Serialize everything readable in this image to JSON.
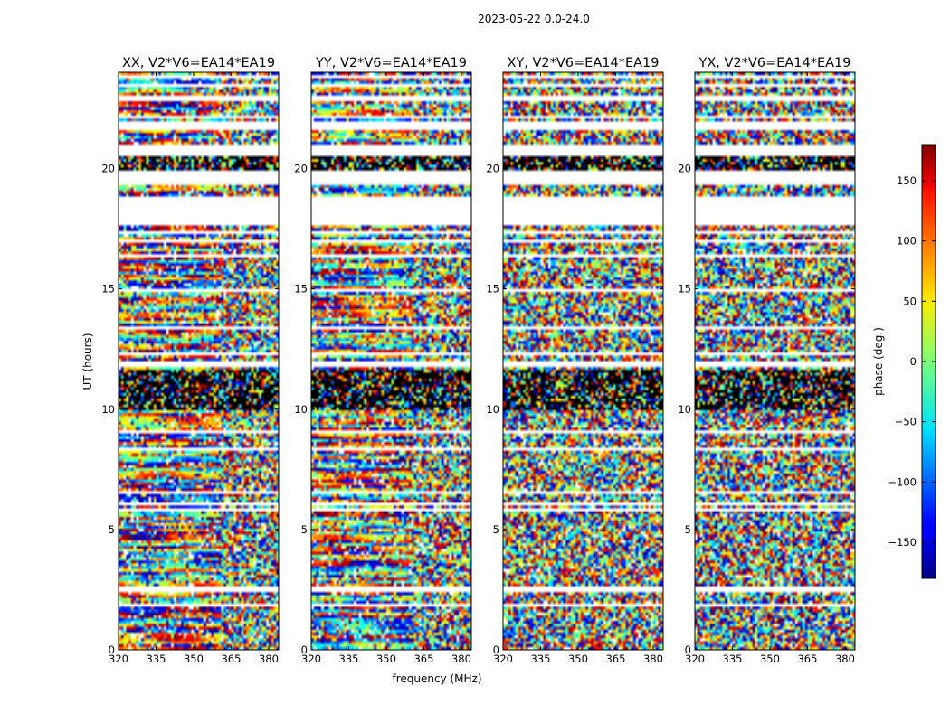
{
  "suptitle": "2023-05-22 0.0-24.0",
  "chart_data": {
    "type": "heatmap",
    "panels": [
      {
        "title": "XX, V2*V6=EA14*EA19",
        "polarization": "XX"
      },
      {
        "title": "YY, V2*V6=EA14*EA19",
        "polarization": "YY"
      },
      {
        "title": "XY, V2*V6=EA14*EA19",
        "polarization": "XY"
      },
      {
        "title": "YX, V2*V6=EA14*EA19",
        "polarization": "YX"
      }
    ],
    "xlabel": "frequency (MHz)",
    "ylabel": "UT (hours)",
    "xlim": [
      320,
      384
    ],
    "ylim": [
      0,
      24
    ],
    "xticks": [
      320,
      335,
      350,
      365,
      380
    ],
    "xtick_labels": [
      "320",
      "335",
      "350",
      "365",
      "380"
    ],
    "yticks": [
      0,
      5,
      10,
      15,
      20
    ],
    "ytick_labels": [
      "0",
      "5",
      "10",
      "15",
      "20"
    ],
    "colorbar": {
      "label": "phase (deg.)",
      "colormap": "jet",
      "range": [
        -180,
        180
      ],
      "ticks": [
        -150,
        -100,
        -50,
        0,
        50,
        100,
        150
      ],
      "tick_labels": [
        "−150",
        "−100",
        "−50",
        "0",
        "50",
        "100",
        "150"
      ]
    },
    "flagged_ut_ranges": [
      [
        0.68,
        0.78
      ],
      [
        0.9,
        1.0
      ],
      [
        1.85,
        1.92
      ],
      [
        2.45,
        2.5
      ],
      [
        2.55,
        2.7
      ],
      [
        4.55,
        4.6
      ],
      [
        5.0,
        5.05
      ],
      [
        5.8,
        5.9
      ],
      [
        6.0,
        6.1
      ],
      [
        6.3,
        6.4
      ],
      [
        6.5,
        6.6
      ],
      [
        8.3,
        8.4
      ],
      [
        9.05,
        9.15
      ],
      [
        11.75,
        11.95
      ],
      [
        12.25,
        12.35
      ],
      [
        13.3,
        13.4
      ],
      [
        14.85,
        14.95
      ],
      [
        15.9,
        16.0
      ],
      [
        16.35,
        16.45
      ],
      [
        16.9,
        17.0
      ],
      [
        17.3,
        17.4
      ],
      [
        17.6,
        18.9
      ],
      [
        19.35,
        19.9
      ],
      [
        20.55,
        20.95
      ],
      [
        21.65,
        22.0
      ],
      [
        22.05,
        22.15
      ],
      [
        22.75,
        23.1
      ],
      [
        23.45,
        23.55
      ],
      [
        23.78,
        23.85
      ]
    ],
    "dark_ut_ranges": [
      [
        19.95,
        20.5
      ],
      [
        10.0,
        11.6
      ]
    ],
    "coherent_channel_limit_mhz": {
      "XX": 361,
      "YY": 361,
      "XY": 0,
      "YX": 0
    }
  }
}
